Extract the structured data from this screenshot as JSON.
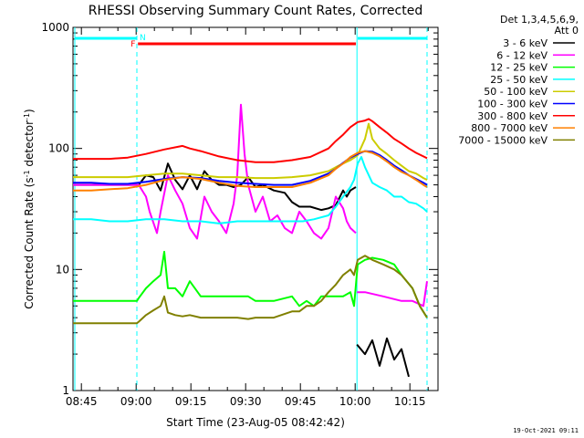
{
  "chart_data": {
    "type": "line",
    "title": "RHESSI Observing Summary Count Rates, Corrected",
    "xlabel": "Start Time (23-Aug-05 08:42:42)",
    "ylabel_main": "Corrected Count Rate (s",
    "ylabel_sup1": "-1",
    "ylabel_mid": " detector",
    "ylabel_sup2": "-1",
    "ylabel_end": ")",
    "yscale": "log",
    "ylim": [
      1,
      1000
    ],
    "xlim_minutes": [
      0,
      100
    ],
    "x_ticks": [
      {
        "label": "08:45",
        "min": 2.3
      },
      {
        "label": "09:00",
        "min": 17.3
      },
      {
        "label": "09:15",
        "min": 32.3
      },
      {
        "label": "09:30",
        "min": 47.3
      },
      {
        "label": "09:45",
        "min": 62.3
      },
      {
        "label": "10:00",
        "min": 77.3
      },
      {
        "label": "10:15",
        "min": 92.3
      }
    ],
    "y_ticks": [
      {
        "label": "1",
        "value": 1
      },
      {
        "label": "10",
        "value": 10
      },
      {
        "label": "100",
        "value": 100
      },
      {
        "label": "1000",
        "value": 1000
      }
    ],
    "legend": {
      "header1": "Det 1,3,4,5,6,9,",
      "header2": "Att 0",
      "position": "right"
    },
    "series": [
      {
        "name": "3 - 6 keV",
        "color": "#000000",
        "x": [
          0,
          5,
          10,
          15,
          17.5,
          18,
          20,
          22,
          24,
          26,
          28,
          30,
          32,
          34,
          36,
          38,
          40,
          42,
          44,
          46,
          48,
          50,
          52,
          55,
          58,
          60,
          62,
          65,
          68,
          70,
          72,
          74,
          75,
          76,
          77.5
        ],
        "y": [
          50,
          50,
          50,
          50,
          50,
          50,
          60,
          58,
          45,
          75,
          55,
          46,
          60,
          46,
          65,
          55,
          50,
          50,
          48,
          50,
          58,
          48,
          50,
          45,
          43,
          36,
          33,
          33,
          31,
          32,
          34,
          45,
          40,
          45,
          48
        ]
      },
      {
        "name": "3 - 6 keV (attn)",
        "color": "#000000",
        "x": [
          77.8,
          80,
          82,
          84,
          86,
          88,
          90,
          92
        ],
        "y": [
          2.4,
          2.0,
          2.6,
          1.6,
          2.7,
          1.8,
          2.2,
          1.3
        ]
      },
      {
        "name": "6 - 12 keV",
        "color": "#ff00ff",
        "x": [
          0,
          5,
          10,
          15,
          17.5,
          18,
          20,
          21,
          23,
          24,
          26,
          28,
          30,
          32,
          34,
          36,
          38,
          40,
          42,
          44,
          45,
          46,
          47,
          48,
          50,
          52,
          54,
          56,
          58,
          60,
          62,
          64,
          66,
          68,
          70,
          72,
          74,
          75,
          76,
          77.5
        ],
        "y": [
          50,
          50,
          50,
          50,
          50,
          50,
          40,
          30,
          20,
          30,
          60,
          45,
          35,
          22,
          18,
          40,
          30,
          25,
          20,
          35,
          60,
          230,
          90,
          50,
          30,
          40,
          25,
          28,
          22,
          20,
          30,
          25,
          20,
          18,
          22,
          40,
          32,
          25,
          22,
          20
        ]
      },
      {
        "name": "6 - 12 keV (attn)",
        "color": "#ff00ff",
        "x": [
          77.8,
          80,
          85,
          90,
          93,
          96,
          97
        ],
        "y": [
          6.5,
          6.5,
          6.0,
          5.5,
          5.5,
          5.0,
          8
        ]
      },
      {
        "name": "12 - 25 keV",
        "color": "#00ff00",
        "x": [
          0,
          5,
          10,
          15,
          17.5,
          18,
          20,
          22,
          24,
          25,
          26,
          28,
          30,
          32,
          35,
          40,
          45,
          48,
          50,
          55,
          60,
          62,
          64,
          66,
          68,
          70,
          72,
          74,
          76,
          77,
          78,
          80,
          82,
          85,
          88,
          90,
          93,
          95,
          97
        ],
        "y": [
          5.5,
          5.5,
          5.5,
          5.5,
          5.5,
          5.8,
          7,
          8,
          9,
          14,
          7,
          7,
          6,
          8,
          6,
          6,
          6,
          6,
          5.5,
          5.5,
          6,
          5,
          5.5,
          5,
          6,
          6,
          6,
          6,
          6.5,
          5,
          11,
          12,
          12.5,
          12,
          11,
          9,
          7,
          5,
          4
        ]
      },
      {
        "name": "25 - 50 keV",
        "color": "#00ffff",
        "x": [
          0,
          5,
          10,
          15,
          20,
          25,
          30,
          35,
          40,
          45,
          50,
          55,
          60,
          63,
          66,
          70,
          72,
          74,
          76,
          77,
          78,
          79,
          80,
          82,
          84,
          86,
          88,
          90,
          92,
          94,
          96,
          97
        ],
        "y": [
          26,
          26,
          25,
          25,
          26,
          26,
          25,
          25,
          24,
          25,
          25,
          25,
          25,
          25,
          26,
          28,
          33,
          40,
          48,
          55,
          75,
          85,
          70,
          52,
          48,
          45,
          40,
          40,
          36,
          35,
          32,
          30
        ]
      },
      {
        "name": "50 - 100 keV",
        "color": "#cccc00",
        "x": [
          0,
          5,
          10,
          15,
          20,
          25,
          30,
          35,
          40,
          45,
          50,
          55,
          60,
          65,
          70,
          72,
          74,
          76,
          78,
          80,
          81,
          82,
          84,
          86,
          88,
          90,
          92,
          94,
          96,
          97
        ],
        "y": [
          58,
          58,
          58,
          58,
          60,
          62,
          62,
          60,
          58,
          58,
          57,
          57,
          58,
          60,
          65,
          70,
          75,
          80,
          88,
          120,
          160,
          120,
          100,
          90,
          80,
          72,
          65,
          62,
          57,
          55
        ]
      },
      {
        "name": "100 - 300 keV",
        "color": "#0000ff",
        "x": [
          0,
          5,
          10,
          15,
          20,
          25,
          30,
          35,
          40,
          45,
          50,
          55,
          60,
          65,
          70,
          72,
          74,
          76,
          78,
          80,
          82,
          84,
          86,
          88,
          90,
          92,
          94,
          96,
          97
        ],
        "y": [
          52,
          52,
          51,
          51,
          53,
          56,
          58,
          57,
          54,
          52,
          51,
          50,
          50,
          54,
          62,
          68,
          76,
          84,
          90,
          95,
          94,
          88,
          80,
          72,
          66,
          60,
          56,
          52,
          50
        ]
      },
      {
        "name": "300 - 800 keV",
        "color": "#ff0000",
        "x": [
          0,
          5,
          10,
          15,
          20,
          25,
          30,
          32,
          35,
          40,
          45,
          50,
          55,
          60,
          65,
          70,
          72,
          74,
          76,
          78,
          80,
          81,
          82,
          84,
          86,
          88,
          90,
          92,
          94,
          96,
          97
        ],
        "y": [
          82,
          82,
          82,
          84,
          90,
          98,
          105,
          100,
          95,
          86,
          80,
          77,
          77,
          80,
          85,
          100,
          115,
          130,
          150,
          165,
          170,
          175,
          168,
          150,
          135,
          120,
          110,
          100,
          92,
          86,
          83
        ]
      },
      {
        "name": "800 - 7000 keV",
        "color": "#ff8000",
        "x": [
          0,
          5,
          10,
          15,
          20,
          25,
          30,
          35,
          40,
          45,
          50,
          55,
          60,
          65,
          70,
          72,
          74,
          76,
          78,
          80,
          82,
          84,
          86,
          88,
          90,
          92,
          94,
          96,
          97
        ],
        "y": [
          45,
          45,
          46,
          47,
          50,
          55,
          58,
          56,
          52,
          49,
          48,
          48,
          48,
          52,
          60,
          68,
          75,
          85,
          92,
          95,
          92,
          86,
          78,
          70,
          64,
          60,
          55,
          50,
          48
        ]
      },
      {
        "name": "7000 - 15000 keV",
        "color": "#808000",
        "x": [
          0,
          5,
          10,
          15,
          17.5,
          18,
          20,
          22,
          24,
          25,
          26,
          28,
          30,
          32,
          35,
          40,
          45,
          48,
          50,
          55,
          60,
          62,
          64,
          66,
          68,
          70,
          72,
          74,
          76,
          77,
          78,
          80,
          82,
          85,
          88,
          90,
          93,
          95,
          97
        ],
        "y": [
          3.6,
          3.6,
          3.6,
          3.6,
          3.6,
          3.7,
          4.2,
          4.6,
          5,
          6,
          4.4,
          4.2,
          4.1,
          4.2,
          4,
          4,
          4,
          3.9,
          4,
          4,
          4.5,
          4.5,
          5,
          5,
          5.5,
          6.5,
          7.5,
          9,
          10,
          9,
          12,
          13,
          12,
          11,
          10,
          9,
          7,
          5,
          4
        ]
      }
    ],
    "flags": [
      {
        "label": "N",
        "color": "#00ffff",
        "segments": [
          [
            0,
            17.5
          ],
          [
            78,
            97
          ]
        ]
      },
      {
        "label": "F",
        "color": "#ff0000",
        "segments": [
          [
            17.8,
            77.5
          ]
        ]
      }
    ],
    "vlines_solid_min": [
      0,
      77.8
    ],
    "vlines_dashed_min": [
      17.5,
      97
    ]
  },
  "footer": {
    "date": "19-Oct-2021 09:11"
  }
}
